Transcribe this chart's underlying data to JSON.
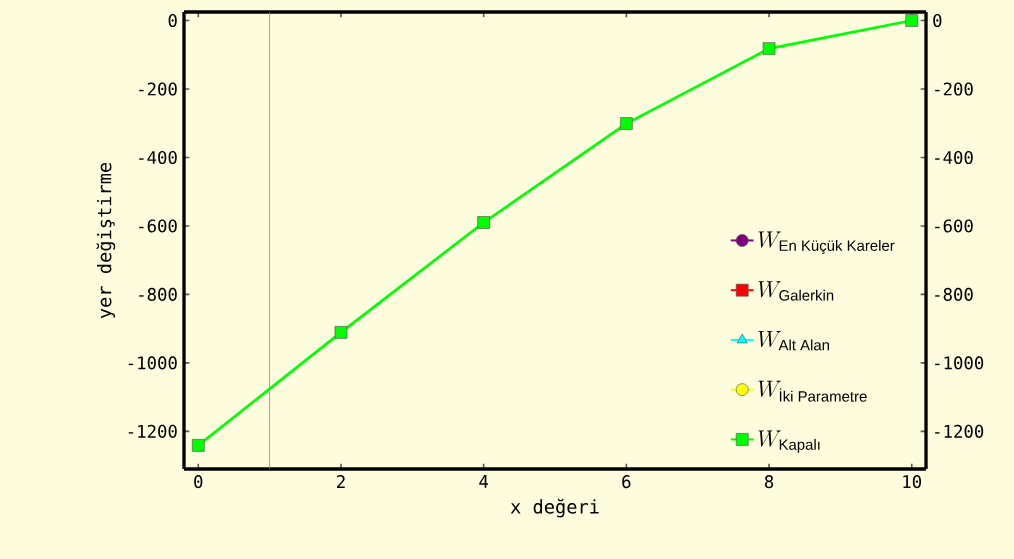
{
  "chart_data": {
    "type": "line",
    "xlabel": "x değeri",
    "ylabel": "yer değiştirme",
    "x": [
      0,
      2,
      4,
      6,
      8,
      10
    ],
    "series": [
      {
        "name": "W_{\\text{En Küçük Kareler}}",
        "color": "#800080",
        "marker": "circle",
        "values": [
          null,
          null,
          null,
          null,
          null,
          null
        ]
      },
      {
        "name": "W_{\\text{Galerkin}}",
        "color": "#ff0000",
        "marker": "square",
        "values": [
          null,
          null,
          null,
          null,
          null,
          null
        ]
      },
      {
        "name": "W_{\\text{Alt Alan}}",
        "color": "#00ffff",
        "marker": "triangle",
        "values": [
          null,
          null,
          null,
          null,
          null,
          null
        ]
      },
      {
        "name": "W_{\\text{İki Parametre}}",
        "color": "#ffff00",
        "marker": "circle",
        "values": [
          null,
          null,
          null,
          null,
          null,
          null
        ]
      },
      {
        "name": "W_{\\text{Kapalı}}",
        "color": "#00ff00",
        "marker": "square",
        "values": [
          -1241,
          -911,
          -590,
          -301,
          -82,
          0
        ]
      }
    ],
    "xlim": [
      -0.2,
      10.2
    ],
    "ylim": [
      -1310,
      25
    ],
    "xticks": [
      0,
      2,
      4,
      6,
      8,
      10
    ],
    "yticks": [
      0,
      -200,
      -400,
      -600,
      -800,
      -1000,
      -1200
    ],
    "y2lim": [
      -1310,
      25
    ],
    "y2ticks": [
      0,
      -200,
      -400,
      -600,
      -800,
      -1000,
      -1200
    ],
    "ref_lines": [
      {
        "axis": "x",
        "value": 1,
        "color": "#808080"
      }
    ],
    "grid": false,
    "legend": "bottom right",
    "line_style": "solid"
  }
}
